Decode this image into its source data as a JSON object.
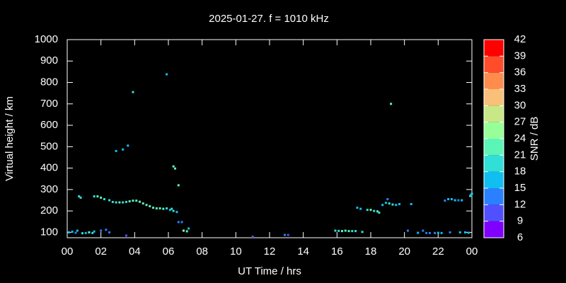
{
  "chart_data": {
    "type": "scatter",
    "title": "2025-01-27. f = 1010 kHz",
    "xlabel": "UT Time / hrs",
    "ylabel": "Virtual height / km",
    "xlim": [
      0,
      24
    ],
    "xticks": [
      {
        "value": 0,
        "label": "00"
      },
      {
        "value": 2,
        "label": "02"
      },
      {
        "value": 4,
        "label": "04"
      },
      {
        "value": 6,
        "label": "06"
      },
      {
        "value": 8,
        "label": "08"
      },
      10,
      12,
      14,
      16,
      18,
      20,
      22,
      {
        "value": 24,
        "label": "00"
      }
    ],
    "ylim": [
      75,
      1000
    ],
    "yticks": [
      100,
      200,
      300,
      400,
      500,
      600,
      700,
      800,
      900,
      1000
    ],
    "x": [
      0.1,
      0.3,
      0.5,
      0.6,
      0.7,
      0.8,
      0.9,
      1.1,
      1.3,
      1.5,
      1.6,
      1.6,
      1.8,
      2.0,
      2.2,
      2.0,
      2.3,
      2.5,
      2.5,
      2.7,
      2.9,
      3.1,
      3.3,
      3.5,
      3.7,
      3.9,
      4.1,
      4.3,
      4.5,
      4.7,
      4.9,
      5.1,
      5.3,
      5.5,
      5.7,
      5.9,
      6.1,
      6.2,
      6.3,
      6.5,
      6.6,
      6.8,
      6.9,
      7.1,
      7.2,
      2.9,
      3.3,
      3.6,
      3.9,
      5.9,
      6.3,
      6.4,
      6.6,
      3.5,
      11.0,
      12.9,
      13.1,
      15.9,
      16.1,
      16.3,
      16.5,
      16.7,
      16.9,
      17.1,
      17.5,
      17.2,
      17.4,
      17.8,
      18.0,
      18.2,
      18.4,
      18.5,
      18.7,
      18.9,
      19.0,
      19.1,
      19.3,
      19.5,
      19.7,
      19.2,
      20.4,
      20.2,
      20.8,
      21.1,
      21.3,
      21.5,
      21.8,
      22.0,
      22.2,
      22.4,
      22.6,
      22.8,
      23.0,
      23.2,
      23.4,
      22.7,
      23.3,
      23.6,
      23.8,
      23.9,
      24.0,
      23.95
    ],
    "y": [
      100,
      103,
      98,
      108,
      268,
      262,
      96,
      97,
      100,
      97,
      104,
      268,
      268,
      262,
      255,
      108,
      112,
      100,
      250,
      242,
      240,
      240,
      240,
      242,
      245,
      248,
      248,
      243,
      235,
      228,
      222,
      215,
      212,
      212,
      210,
      212,
      205,
      210,
      200,
      195,
      148,
      148,
      108,
      105,
      118,
      480,
      487,
      505,
      755,
      838,
      408,
      398,
      320,
      85,
      80,
      88,
      88,
      108,
      107,
      106,
      108,
      106,
      106,
      106,
      102,
      215,
      210,
      205,
      205,
      200,
      198,
      192,
      228,
      238,
      255,
      235,
      230,
      228,
      232,
      700,
      232,
      108,
      98,
      108,
      97,
      97,
      97,
      98,
      97,
      248,
      255,
      255,
      250,
      250,
      250,
      100,
      100,
      100,
      98,
      270,
      280,
      275
    ],
    "snr": [
      15,
      17,
      12,
      15,
      20,
      18,
      18,
      16,
      22,
      19,
      15,
      20,
      21,
      21,
      18,
      12,
      14,
      12,
      19,
      20,
      20,
      21,
      20,
      18,
      21,
      23,
      23,
      22,
      22,
      22,
      21,
      22,
      21,
      22,
      21,
      20,
      17,
      18,
      19,
      15,
      14,
      12,
      24,
      21,
      15,
      17,
      16,
      15,
      18,
      17,
      22,
      21,
      23,
      11,
      11,
      12,
      11,
      18,
      20,
      21,
      22,
      21,
      20,
      19,
      20,
      17,
      15,
      20,
      21,
      20,
      22,
      19,
      15,
      16,
      13,
      18,
      20,
      17,
      15,
      23,
      15,
      14,
      15,
      13,
      13,
      12,
      14,
      15,
      15,
      14,
      17,
      16,
      15,
      14,
      15,
      13,
      15,
      16,
      16,
      20,
      18,
      17
    ],
    "colorbar": {
      "label": "SNR / dB",
      "lim": [
        6,
        42
      ],
      "ticks": [
        6,
        9,
        12,
        15,
        18,
        21,
        24,
        27,
        30,
        33,
        36,
        39,
        42
      ],
      "colors": [
        "#8000ff",
        "#5050ff",
        "#2a80ff",
        "#10bff0",
        "#30e0d8",
        "#5cf5b8",
        "#98ff98",
        "#c8e888",
        "#f8c078",
        "#ff8c4c",
        "#ff4c2a",
        "#ff0000"
      ]
    }
  }
}
